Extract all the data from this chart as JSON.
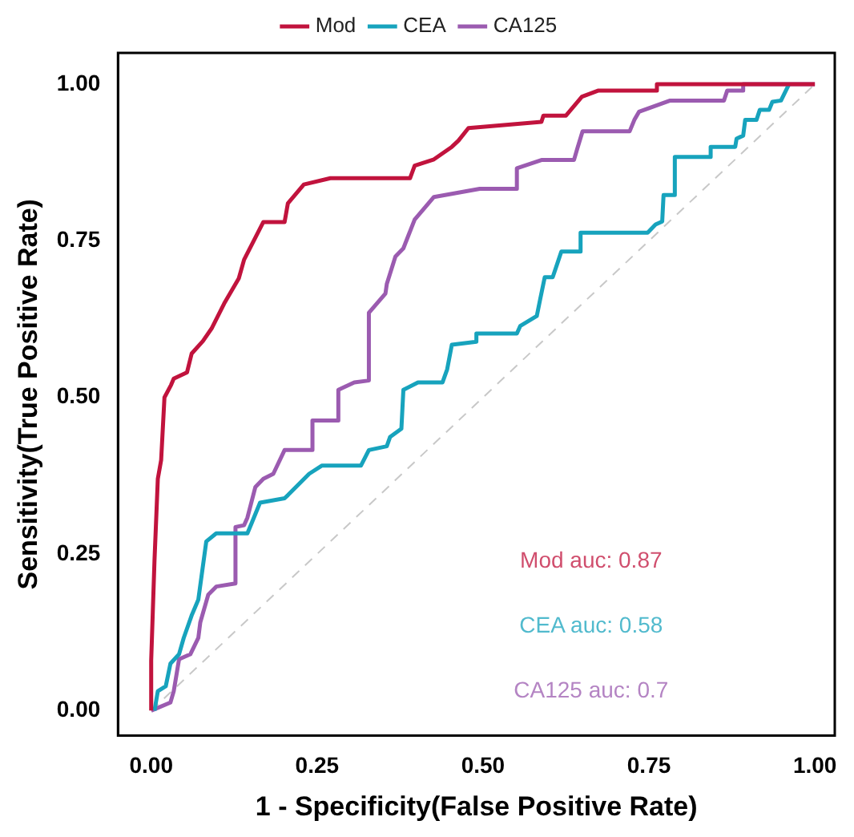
{
  "chart_data": {
    "type": "line",
    "xlabel": "1 - Specificity(False Positive Rate)",
    "ylabel": "Sensitivity(True Positive Rate)",
    "xlim": [
      -0.05,
      1.03
    ],
    "ylim": [
      -0.04,
      1.05
    ],
    "xticks": [
      {
        "value": 0,
        "label": "0.00"
      },
      {
        "value": 0.25,
        "label": "0.25"
      },
      {
        "value": 0.5,
        "label": "0.50"
      },
      {
        "value": 0.75,
        "label": "0.75"
      },
      {
        "value": 1,
        "label": "1.00"
      }
    ],
    "yticks": [
      {
        "value": 0,
        "label": "0.00"
      },
      {
        "value": 0.25,
        "label": "0.25"
      },
      {
        "value": 0.5,
        "label": "0.50"
      },
      {
        "value": 0.75,
        "label": "0.75"
      },
      {
        "value": 1,
        "label": "1.00"
      }
    ],
    "grid": false,
    "legend": "top",
    "marker": "none",
    "series": [
      {
        "name": "Mod",
        "color": "#c1133d",
        "x": [
          0,
          0,
          0.005,
          0.01,
          0.015,
          0.02,
          0.03,
          0.034,
          0.054,
          0.061,
          0.078,
          0.091,
          0.11,
          0.132,
          0.14,
          0.169,
          0.201,
          0.206,
          0.23,
          0.27,
          0.39,
          0.397,
          0.426,
          0.453,
          0.463,
          0.478,
          0.588,
          0.591,
          0.625,
          0.649,
          0.674,
          0.76,
          0.762,
          1
        ],
        "values": [
          0,
          0.08,
          0.24,
          0.37,
          0.4,
          0.5,
          0.52,
          0.53,
          0.54,
          0.57,
          0.59,
          0.61,
          0.65,
          0.69,
          0.72,
          0.78,
          0.78,
          0.81,
          0.84,
          0.85,
          0.85,
          0.87,
          0.88,
          0.9,
          0.91,
          0.93,
          0.94,
          0.95,
          0.95,
          0.98,
          0.99,
          0.99,
          1,
          1
        ]
      },
      {
        "name": "CEA",
        "color": "#17a3bd",
        "x": [
          0.005,
          0.01,
          0.022,
          0.029,
          0.042,
          0.049,
          0.061,
          0.071,
          0.083,
          0.098,
          0.145,
          0.152,
          0.164,
          0.201,
          0.206,
          0.238,
          0.257,
          0.316,
          0.328,
          0.355,
          0.36,
          0.377,
          0.38,
          0.402,
          0.439,
          0.446,
          0.453,
          0.49,
          0.49,
          0.551,
          0.556,
          0.581,
          0.586,
          0.593,
          0.605,
          0.613,
          0.618,
          0.647,
          0.647,
          0.748,
          0.76,
          0.77,
          0.772,
          0.789,
          0.789,
          0.843,
          0.843,
          0.88,
          0.882,
          0.892,
          0.895,
          0.912,
          0.917,
          0.931,
          0.936,
          0.949,
          0.961
        ],
        "values": [
          0,
          0.031,
          0.039,
          0.075,
          0.09,
          0.116,
          0.152,
          0.177,
          0.27,
          0.283,
          0.283,
          0.301,
          0.332,
          0.339,
          0.344,
          0.378,
          0.391,
          0.391,
          0.416,
          0.422,
          0.437,
          0.45,
          0.512,
          0.524,
          0.524,
          0.545,
          0.584,
          0.589,
          0.602,
          0.602,
          0.614,
          0.63,
          0.656,
          0.692,
          0.692,
          0.717,
          0.733,
          0.733,
          0.763,
          0.763,
          0.776,
          0.781,
          0.823,
          0.823,
          0.884,
          0.884,
          0.9,
          0.9,
          0.913,
          0.918,
          0.943,
          0.943,
          0.959,
          0.959,
          0.972,
          0.974,
          1
        ]
      },
      {
        "name": "CA125",
        "color": "#9b5bb0",
        "x": [
          0,
          0.029,
          0.034,
          0.042,
          0.059,
          0.071,
          0.074,
          0.086,
          0.098,
          0.127,
          0.127,
          0.14,
          0.145,
          0.157,
          0.169,
          0.184,
          0.201,
          0.243,
          0.243,
          0.282,
          0.282,
          0.306,
          0.328,
          0.328,
          0.353,
          0.355,
          0.368,
          0.38,
          0.397,
          0.426,
          0.495,
          0.551,
          0.551,
          0.588,
          0.637,
          0.642,
          0.65,
          0.721,
          0.728,
          0.735,
          0.782,
          0.863,
          0.868,
          0.892,
          0.892,
          1
        ],
        "values": [
          0,
          0.013,
          0.031,
          0.082,
          0.09,
          0.116,
          0.141,
          0.185,
          0.198,
          0.203,
          0.293,
          0.296,
          0.308,
          0.357,
          0.37,
          0.378,
          0.416,
          0.416,
          0.463,
          0.463,
          0.512,
          0.524,
          0.527,
          0.635,
          0.666,
          0.681,
          0.725,
          0.738,
          0.784,
          0.82,
          0.833,
          0.833,
          0.866,
          0.879,
          0.879,
          0.897,
          0.925,
          0.925,
          0.943,
          0.956,
          0.974,
          0.974,
          0.99,
          0.99,
          1,
          1
        ]
      },
      {
        "color": "#c8c8c8",
        "line_style": "dashed",
        "x": [
          0,
          1
        ],
        "values": [
          0,
          1
        ]
      }
    ],
    "annotations": [
      "Mod auc: 0.87",
      "CEA auc: 0.58",
      "CA125 auc: 0.7"
    ]
  }
}
